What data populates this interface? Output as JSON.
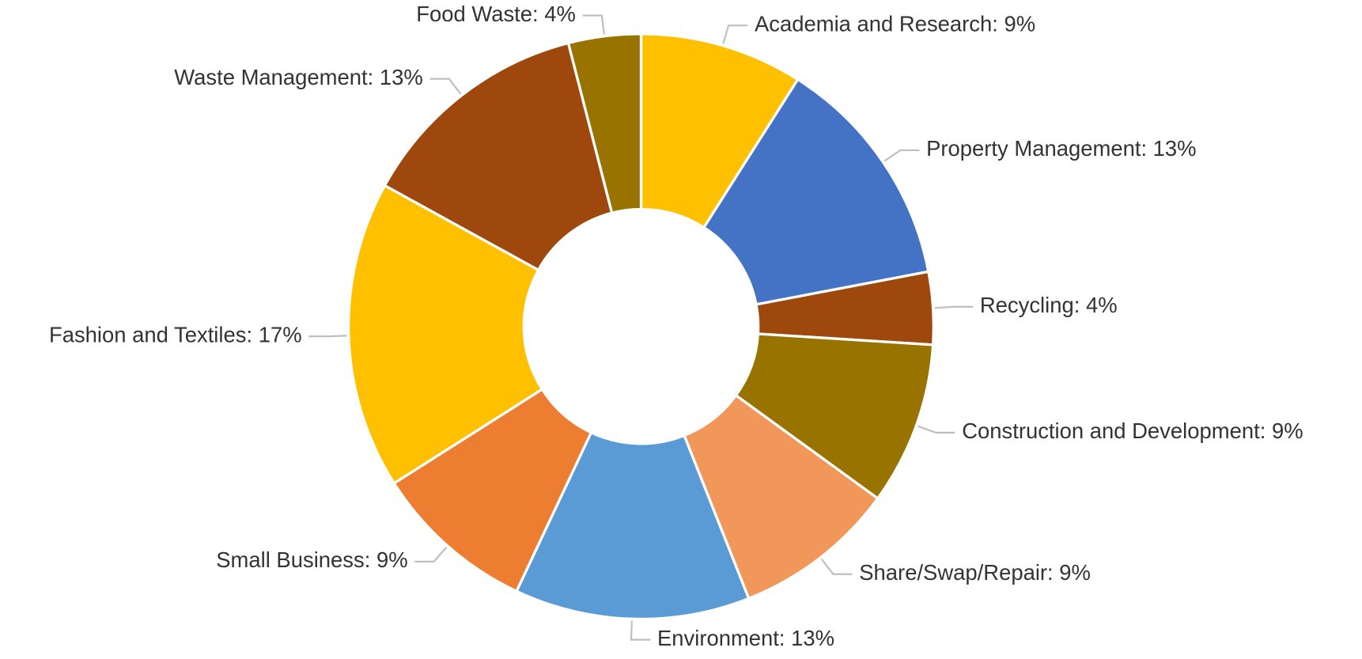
{
  "chart_data": {
    "type": "donut",
    "values": [
      9,
      13,
      4,
      9,
      9,
      13,
      9,
      17,
      13,
      4
    ],
    "value_labels": [
      "Academia and Research: 9%",
      "Property Management: 13%",
      "Recycling: 4%",
      "Construction and Development: 9%",
      "Share/Swap/Repair: 9%",
      "Environment: 13%",
      "Small Business: 9%",
      "Fashion and Textiles: 17%",
      "Waste Management: 13%",
      "Food Waste: 4%"
    ],
    "colors": [
      "#ffc000",
      "#4472c4",
      "#9e480e",
      "#997300",
      "#f1975a",
      "#5b9bd5",
      "#ed7d31",
      "#ffc000",
      "#9e480e",
      "#997300"
    ]
  }
}
